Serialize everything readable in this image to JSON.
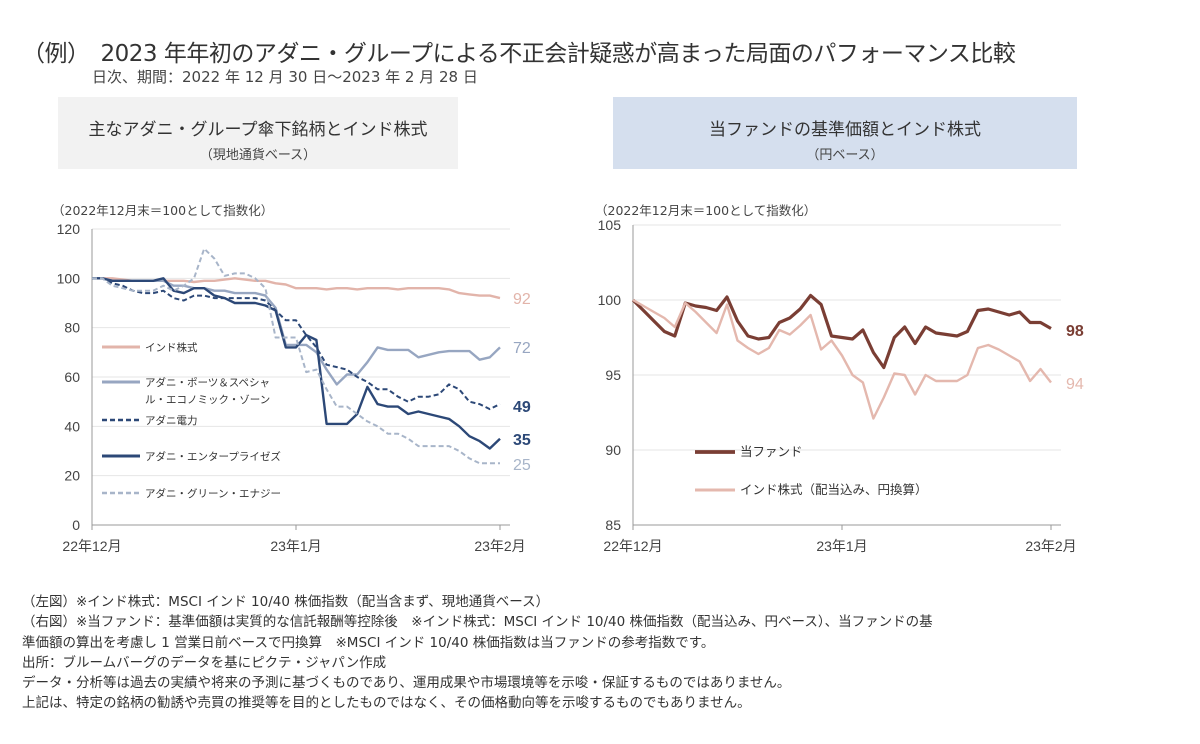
{
  "header": {
    "title": "（例）　2023 年年初のアダニ・グループによる不正会計疑惑が高まった局面のパフォーマンス比較",
    "subtitle": "日次、期間：2022 年 12 月 30 日～2023 年 2 月 28 日"
  },
  "panels": {
    "left": {
      "title": "主なアダニ・グループ傘下銘柄とインド株式",
      "subtitle": "（現地通貨ベース）"
    },
    "right": {
      "title": "当ファンドの基準価額とインド株式",
      "subtitle": "（円ベース）"
    }
  },
  "chart_data": [
    {
      "type": "line",
      "unit_note": "（2022年12月末＝100として指数化）",
      "x_ticks": [
        "22年12月",
        "23年1月",
        "23年2月"
      ],
      "ylim": [
        0,
        120
      ],
      "y_ticks": [
        0,
        20,
        40,
        60,
        80,
        100,
        120
      ],
      "grid": true,
      "legend_placement": "left-middle",
      "series": [
        {
          "name": "インド株式",
          "color": "#e2b4aa",
          "style": "solid",
          "end_label": "92",
          "values": [
            100,
            100,
            100,
            99.5,
            99,
            99,
            99,
            99,
            99,
            99,
            98.5,
            99,
            99,
            99.5,
            100,
            99.5,
            99,
            99,
            98,
            97.5,
            96,
            96,
            96,
            95.5,
            96,
            96,
            95.5,
            96,
            96,
            96,
            95.5,
            96,
            96,
            96,
            96,
            95.5,
            94,
            93.5,
            93,
            93,
            92
          ]
        },
        {
          "name": "アダニ・ポーツ＆スペシャル・エコノミック・ゾーン",
          "legend_lines": [
            "アダニ・ポーツ＆スペシャ",
            "ル・エコノミック・ゾーン"
          ],
          "color": "#97a6c1",
          "style": "solid",
          "end_label": "72",
          "values": [
            100,
            100,
            99,
            99,
            99,
            99,
            99,
            99,
            97,
            97,
            96,
            96,
            95,
            95,
            94,
            94,
            94,
            93,
            88,
            73,
            73,
            73,
            70,
            63,
            57,
            61,
            61,
            66,
            72,
            71,
            71,
            71,
            68,
            69,
            70,
            70.5,
            70.5,
            70.5,
            67,
            68,
            72
          ]
        },
        {
          "name": "アダニ電力",
          "color": "#2c4877",
          "style": "dashed",
          "end_label": "49",
          "values": [
            100,
            100,
            98,
            97,
            95,
            94,
            94,
            95,
            92,
            91,
            93,
            93,
            92,
            92,
            92,
            92,
            92,
            91,
            87,
            83,
            83,
            77,
            72,
            65,
            64,
            63,
            60,
            58,
            55,
            55,
            52,
            50,
            52,
            52,
            53,
            57,
            55,
            50,
            49,
            47,
            49
          ]
        },
        {
          "name": "アダニ・エンタープライゼズ",
          "color": "#2c4877",
          "style": "solid",
          "end_label": "35",
          "values": [
            100,
            100,
            99,
            99,
            99,
            99,
            99,
            100,
            95,
            94,
            96,
            96,
            93,
            92,
            90,
            90,
            90,
            89,
            87,
            72,
            72,
            77,
            75,
            41,
            41,
            41,
            45,
            56,
            49,
            48,
            48,
            45,
            46,
            45,
            44,
            43,
            40,
            36,
            34,
            31,
            35
          ]
        },
        {
          "name": "アダニ・グリーン・エナジー",
          "color": "#a8b5c9",
          "style": "dashed",
          "end_label": "25",
          "values": [
            100,
            100,
            97,
            96,
            95,
            95,
            95,
            97,
            95,
            97,
            100,
            112,
            108,
            101,
            102,
            102,
            100,
            96,
            76,
            76,
            76,
            62,
            63,
            55,
            48,
            48,
            45,
            42,
            40,
            37,
            37,
            35,
            32,
            32,
            32,
            32,
            30,
            27,
            25,
            25,
            25
          ]
        }
      ]
    },
    {
      "type": "line",
      "unit_note": "（2022年12月末＝100として指数化）",
      "x_ticks": [
        "22年12月",
        "23年1月",
        "23年2月"
      ],
      "ylim": [
        85,
        105
      ],
      "y_ticks": [
        85,
        90,
        95,
        100,
        105
      ],
      "grid": true,
      "legend_placement": "bottom-left",
      "series": [
        {
          "name": "当ファンド",
          "color": "#7a3e34",
          "style": "solid",
          "end_label": "98",
          "values": [
            100,
            99.3,
            98.6,
            97.9,
            97.6,
            99.8,
            99.6,
            99.5,
            99.3,
            100.2,
            98.6,
            97.6,
            97.4,
            97.5,
            98.5,
            98.8,
            99.4,
            100.3,
            99.7,
            97.6,
            97.5,
            97.4,
            98.0,
            96.5,
            95.5,
            97.5,
            98.2,
            97.1,
            98.2,
            97.8,
            97.7,
            97.6,
            97.9,
            99.3,
            99.4,
            99.2,
            99.0,
            99.2,
            98.5,
            98.5,
            98.1
          ]
        },
        {
          "name": "インド株式（配当込み、円換算）",
          "color": "#e4b8ae",
          "style": "solid",
          "end_label": "94",
          "values": [
            100,
            99.6,
            99.2,
            98.8,
            98.2,
            99.8,
            99.2,
            98.5,
            97.8,
            99.7,
            97.3,
            96.8,
            96.4,
            96.8,
            98.0,
            97.7,
            98.3,
            99.0,
            96.7,
            97.3,
            96.3,
            95.0,
            94.5,
            92.1,
            93.5,
            95.1,
            95.0,
            93.7,
            95.0,
            94.6,
            94.6,
            94.6,
            95.0,
            96.8,
            97.0,
            96.7,
            96.3,
            95.9,
            94.6,
            95.4,
            94.5
          ]
        }
      ]
    }
  ],
  "notes": [
    "（左図）※インド株式：MSCI インド 10/40 株価指数（配当含まず、現地通貨ベース）",
    "（右図）※当ファンド：基準価額は実質的な信託報酬等控除後　※インド株式：MSCI インド 10/40 株価指数（配当込み、円ベース）、当ファンドの基",
    "準価額の算出を考慮し 1 営業日前ベースで円換算　※MSCI インド 10/40 株価指数は当ファンドの参考指数です。",
    "出所：ブルームバーグのデータを基にピクテ・ジャパン作成",
    "データ・分析等は過去の実績や将来の予測に基づくものであり、運用成果や市場環境等を示唆・保証するものではありません。",
    "上記は、特定の銘柄の勧誘や売買の推奨等を目的としたものではなく、その価格動向等を示唆するものでもありません。"
  ]
}
